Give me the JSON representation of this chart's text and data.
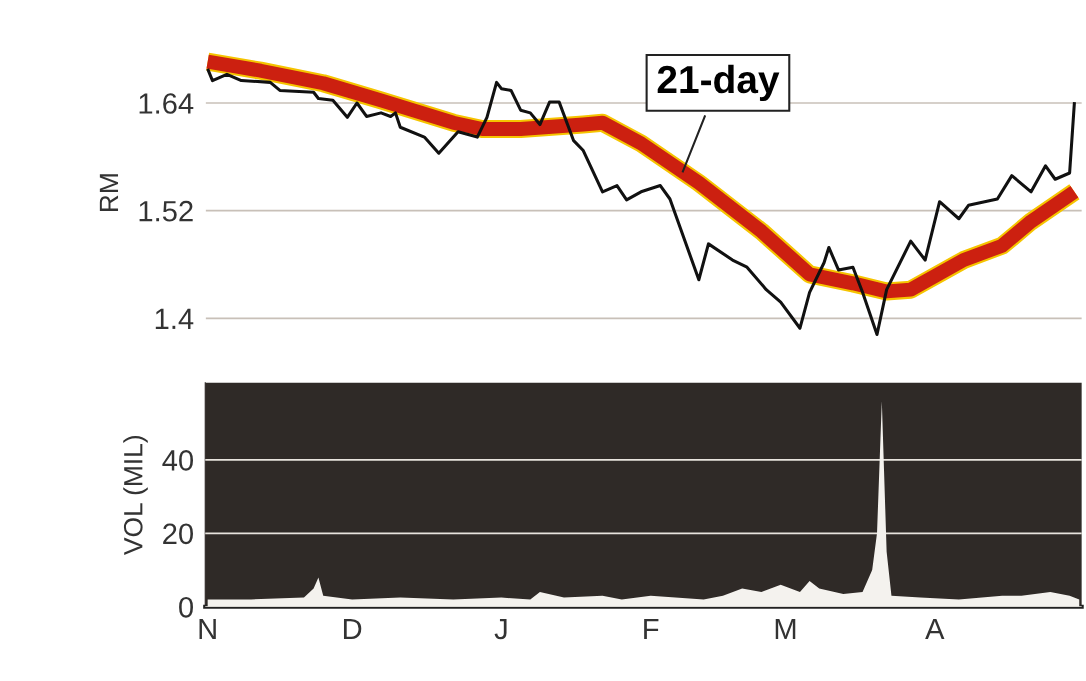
{
  "chart_data": [
    {
      "type": "line",
      "ylabel": "RM",
      "ylim": [
        1.37,
        1.71
      ],
      "yticks": [
        1.4,
        1.52,
        1.64
      ],
      "tick_labels": "y",
      "grid": "y",
      "categories": [
        null,
        null,
        null,
        null,
        null,
        null,
        null,
        null,
        null,
        null,
        null,
        null,
        null,
        null,
        null,
        null,
        null,
        null,
        null,
        null,
        null,
        null,
        null,
        null,
        null,
        null,
        null,
        null,
        null,
        null,
        null,
        null,
        null,
        null,
        null,
        null,
        null,
        null,
        null,
        null,
        null,
        null,
        null,
        null,
        null,
        null,
        null,
        null,
        null,
        null,
        null,
        null,
        null,
        null,
        null,
        null,
        null,
        null,
        null,
        null,
        null,
        null,
        null,
        null,
        null,
        null,
        null,
        null,
        null,
        null,
        null,
        null,
        null,
        null,
        null,
        null,
        null,
        null,
        null,
        null,
        null,
        null,
        null,
        null,
        null,
        null,
        null,
        null,
        null,
        null,
        null,
        null,
        null,
        null,
        null,
        null,
        null,
        null,
        null,
        null,
        null,
        null,
        null,
        null,
        null,
        null,
        null,
        null,
        null,
        null,
        null,
        null,
        null,
        null,
        null,
        null,
        null,
        null,
        null,
        null,
        null,
        null,
        null,
        null,
        null,
        null,
        null,
        null,
        null,
        null,
        null,
        null,
        null,
        null,
        null,
        null,
        null,
        null,
        null,
        null,
        null,
        null,
        null,
        null,
        null,
        null,
        null,
        null,
        null,
        null,
        null,
        null,
        null,
        null,
        null,
        null,
        null,
        null,
        null,
        null,
        null,
        null,
        null,
        null,
        null,
        null,
        null,
        null,
        null,
        null,
        null,
        null,
        null,
        null,
        null,
        null,
        null,
        null,
        null,
        null,
        null,
        null
      ],
      "series": [
        {
          "color": "#111111",
          "values": [
            1.678,
            1.665,
            null,
            null,
            1.672,
            null,
            null,
            1.665,
            null,
            null,
            null,
            null,
            null,
            1.663,
            null,
            1.654,
            null,
            null,
            null,
            null,
            null,
            null,
            1.652,
            1.645,
            null,
            null,
            1.643,
            null,
            null,
            1.624,
            null,
            1.64,
            null,
            1.625,
            null,
            null,
            1.629,
            null,
            1.625,
            1.629,
            1.613,
            null,
            null,
            null,
            null,
            1.602,
            null,
            null,
            1.584,
            null,
            null,
            null,
            1.608,
            null,
            null,
            null,
            1.602,
            null,
            1.624,
            null,
            1.663,
            1.656,
            null,
            1.654,
            null,
            1.632,
            null,
            1.629,
            null,
            1.616,
            null,
            1.641,
            null,
            1.641,
            null,
            null,
            1.598,
            null,
            1.587,
            null,
            null,
            null,
            1.541,
            null,
            null,
            1.548,
            null,
            1.532,
            null,
            null,
            1.541,
            null,
            null,
            null,
            1.548,
            null,
            1.533,
            null,
            null,
            null,
            null,
            null,
            1.443,
            null,
            1.483,
            null,
            null,
            null,
            null,
            1.465,
            null,
            null,
            1.457,
            null,
            null,
            null,
            1.432,
            null,
            null,
            1.418,
            null,
            null,
            null,
            1.389,
            null,
            1.429,
            null,
            null,
            1.462,
            1.479,
            null,
            1.454,
            null,
            null,
            1.457,
            null,
            1.429,
            null,
            null,
            1.382,
            null,
            1.432,
            null,
            null,
            null,
            null,
            1.486,
            null,
            null,
            1.465,
            null,
            null,
            1.53,
            null,
            null,
            null,
            1.511,
            null,
            1.526,
            null,
            null,
            null,
            null,
            null,
            1.533,
            null,
            null,
            1.559,
            null,
            null,
            null,
            1.541,
            null,
            null,
            1.57,
            null,
            1.555,
            null,
            null,
            1.562,
            1.641,
            null
          ]
        },
        {
          "color": "#cc2010",
          "values": [
            1.686,
            null,
            null,
            null,
            null,
            null,
            null,
            null,
            null,
            null,
            null,
            1.676,
            null,
            null,
            null,
            null,
            null,
            null,
            null,
            null,
            null,
            null,
            null,
            null,
            1.662,
            null,
            null,
            null,
            null,
            null,
            null,
            null,
            null,
            null,
            null,
            null,
            1.643,
            null,
            null,
            null,
            null,
            null,
            null,
            null,
            null,
            null,
            null,
            null,
            null,
            null,
            null,
            1.618,
            null,
            null,
            null,
            null,
            null,
            1.611,
            null,
            null,
            null,
            null,
            null,
            null,
            null,
            1.611,
            null,
            null,
            null,
            null,
            null,
            null,
            null,
            null,
            null,
            null,
            null,
            null,
            1.616,
            null,
            null,
            null,
            1.618,
            null,
            null,
            null,
            null,
            null,
            null,
            null,
            1.595,
            null,
            null,
            null,
            null,
            null,
            null,
            null,
            null,
            null,
            null,
            null,
            1.551,
            null,
            null,
            null,
            null,
            null,
            null,
            null,
            null,
            null,
            null,
            null,
            null,
            1.497,
            null,
            null,
            null,
            null,
            null,
            null,
            null,
            null,
            null,
            1.449,
            null,
            null,
            null,
            null,
            null,
            null,
            null,
            null,
            1.439,
            null,
            null,
            null,
            null,
            null,
            null,
            1.43,
            null,
            null,
            null,
            null,
            1.432,
            null,
            null,
            null,
            null,
            null,
            null,
            null,
            null,
            null,
            null,
            1.465,
            null,
            null,
            null,
            null,
            null,
            null,
            null,
            1.481,
            null,
            null,
            null,
            null,
            null,
            1.508,
            null,
            null,
            null,
            null,
            null,
            null,
            null,
            null,
            1.541,
            null
          ]
        }
      ],
      "annotations": [
        "21-day"
      ]
    },
    {
      "type": "area",
      "ylabel": "VOL (MIL)",
      "color": "#f4f2ee",
      "ylim": [
        0,
        61
      ],
      "yticks": [
        0,
        20,
        40
      ],
      "grid": "y",
      "categories": [
        "N",
        null,
        null,
        null,
        null,
        null,
        null,
        null,
        null,
        null,
        null,
        null,
        null,
        null,
        null,
        null,
        null,
        null,
        null,
        null,
        null,
        null,
        null,
        null,
        null,
        null,
        null,
        null,
        null,
        null,
        "D",
        null,
        null,
        null,
        null,
        null,
        null,
        null,
        null,
        null,
        null,
        null,
        null,
        null,
        null,
        null,
        null,
        null,
        null,
        null,
        null,
        null,
        null,
        null,
        null,
        null,
        null,
        null,
        null,
        null,
        null,
        "J",
        null,
        null,
        null,
        null,
        null,
        null,
        null,
        null,
        null,
        null,
        null,
        null,
        null,
        null,
        null,
        null,
        null,
        null,
        null,
        null,
        null,
        null,
        null,
        null,
        null,
        null,
        null,
        null,
        null,
        null,
        "F",
        null,
        null,
        null,
        null,
        null,
        null,
        null,
        null,
        null,
        null,
        null,
        null,
        null,
        null,
        null,
        null,
        null,
        null,
        null,
        null,
        null,
        null,
        null,
        null,
        null,
        null,
        null,
        "M",
        null,
        null,
        null,
        null,
        null,
        null,
        null,
        null,
        null,
        null,
        null,
        null,
        null,
        null,
        null,
        null,
        null,
        null,
        null,
        null,
        null,
        null,
        null,
        null,
        null,
        null,
        null,
        null,
        null,
        null,
        "A",
        null,
        null,
        null,
        null,
        null,
        null,
        null,
        null,
        null,
        null,
        null,
        null,
        null,
        null,
        null,
        null,
        null,
        null,
        null,
        null,
        null,
        null,
        null,
        null,
        null,
        null,
        null,
        null,
        null,
        null
      ],
      "values": [
        2,
        null,
        null,
        null,
        null,
        null,
        null,
        null,
        null,
        2,
        null,
        null,
        null,
        null,
        null,
        null,
        null,
        null,
        null,
        null,
        2.5,
        null,
        5,
        8,
        3,
        null,
        null,
        null,
        null,
        null,
        2,
        null,
        null,
        null,
        null,
        null,
        null,
        null,
        null,
        null,
        2.5,
        null,
        null,
        null,
        null,
        null,
        null,
        null,
        null,
        null,
        null,
        2,
        null,
        null,
        null,
        null,
        null,
        null,
        null,
        null,
        null,
        2.5,
        null,
        null,
        null,
        null,
        null,
        2,
        null,
        4,
        null,
        null,
        null,
        null,
        2.5,
        null,
        null,
        null,
        null,
        null,
        null,
        null,
        3,
        null,
        null,
        null,
        2,
        null,
        null,
        null,
        null,
        null,
        3,
        null,
        null,
        null,
        null,
        null,
        null,
        null,
        null,
        null,
        null,
        2,
        null,
        null,
        null,
        3,
        null,
        null,
        null,
        5,
        null,
        null,
        null,
        4,
        null,
        null,
        null,
        6,
        null,
        null,
        null,
        4,
        null,
        7,
        null,
        5,
        null,
        null,
        null,
        null,
        3.5,
        null,
        null,
        null,
        4,
        null,
        10,
        20,
        56,
        15,
        3,
        null,
        null,
        null,
        null,
        null,
        2.5,
        null,
        null,
        null,
        null,
        null,
        null,
        null,
        2,
        null,
        null,
        null,
        null,
        null,
        null,
        null,
        null,
        3,
        null,
        null,
        null,
        3,
        null,
        null,
        null,
        null,
        null,
        4,
        null,
        null,
        null,
        3,
        null,
        2
      ]
    }
  ]
}
